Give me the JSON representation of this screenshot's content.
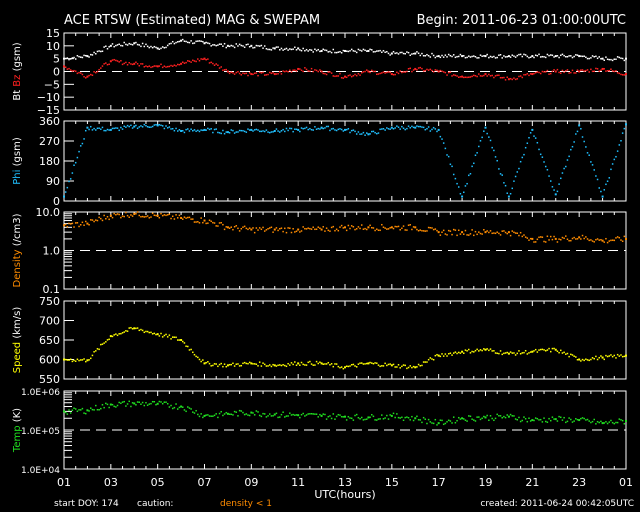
{
  "header": {
    "title": "ACE RTSW (Estimated) MAG & SWEPAM",
    "begin": "Begin: 2011-06-23 01:00:00UTC"
  },
  "footer": {
    "start_doy": "start DOY: 174",
    "caution": "caution:",
    "caution_note": "density < 1",
    "created": "created: 2011-06-24 00:42:05UTC",
    "caution_color": "#ff8c00"
  },
  "chart_data": {
    "type": "scatter",
    "title": "ACE RTSW (Estimated) MAG & SWEPAM",
    "xlabel": "UTC(hours)",
    "x_ticks": [
      "01",
      "03",
      "05",
      "07",
      "09",
      "11",
      "13",
      "15",
      "17",
      "19",
      "21",
      "23",
      "01"
    ],
    "x_range_hours": [
      0,
      24
    ],
    "panels": [
      {
        "id": "mag",
        "ylabel_parts": [
          {
            "text": "Bt",
            "color": "#ffffff"
          },
          {
            "text": " Bz",
            "color": "#ff2020"
          },
          {
            "text": " (gsm)",
            "color": "#ffffff"
          }
        ],
        "scale": "linear",
        "ylim": [
          -15,
          15
        ],
        "ref_line": 0,
        "ticks": [
          {
            "v": 15,
            "label": "15"
          },
          {
            "v": 10,
            "label": "10"
          },
          {
            "v": 5,
            "label": "5"
          },
          {
            "v": 0,
            "label": "0"
          },
          {
            "v": -5,
            "label": "−5"
          },
          {
            "v": -10,
            "label": "−10"
          },
          {
            "v": -15,
            "label": "−15"
          }
        ],
        "series": [
          {
            "name": "Bt",
            "color": "#ffffff",
            "values": [
              5,
              6,
              10,
              11,
              9,
              12,
              11,
              10,
              10,
              9,
              9,
              8,
              8,
              8,
              7,
              7,
              6,
              6,
              6,
              6,
              6,
              6,
              6,
              5,
              5
            ]
          },
          {
            "name": "Bz",
            "color": "#ff2020",
            "values": [
              2,
              -2,
              4,
              3,
              2,
              3,
              5,
              0,
              -1,
              -1,
              1,
              0,
              -2,
              0,
              -1,
              1,
              0,
              -2,
              -1,
              -3,
              -1,
              0,
              0,
              1,
              -1
            ]
          }
        ]
      },
      {
        "id": "phi",
        "ylabel_parts": [
          {
            "text": "Phi",
            "color": "#20c0ff"
          },
          {
            "text": " (gsm)",
            "color": "#ffffff"
          }
        ],
        "scale": "linear",
        "ylim": [
          0,
          360
        ],
        "ticks": [
          {
            "v": 360,
            "label": "360"
          },
          {
            "v": 270,
            "label": "270"
          },
          {
            "v": 180,
            "label": "180"
          },
          {
            "v": 90,
            "label": "90"
          },
          {
            "v": 0,
            "label": "0"
          }
        ],
        "series": [
          {
            "name": "Phi",
            "color": "#20c0ff",
            "values": [
              20,
              330,
              320,
              335,
              340,
              315,
              320,
              310,
              320,
              315,
              320,
              330,
              320,
              300,
              330,
              330,
              320,
              20,
              330,
              20,
              320,
              30,
              340,
              20,
              345
            ]
          }
        ]
      },
      {
        "id": "density",
        "ylabel_parts": [
          {
            "text": "Density",
            "color": "#ff8c00"
          },
          {
            "text": " (/cm3)",
            "color": "#ffffff"
          }
        ],
        "scale": "log",
        "ylim": [
          0.1,
          10
        ],
        "ref_line": 1,
        "ticks": [
          {
            "v": 10,
            "label": "10.0"
          },
          {
            "v": 1,
            "label": "1.0"
          },
          {
            "v": 0.1,
            "label": "0.1"
          }
        ],
        "series": [
          {
            "name": "Density",
            "color": "#ff8c00",
            "values": [
              4.5,
              5,
              8,
              9,
              8,
              7,
              6,
              4,
              3.5,
              3.5,
              3.5,
              3.5,
              4,
              4,
              4,
              4,
              3,
              3,
              3,
              3,
              2,
              2,
              2.2,
              1.8,
              2
            ]
          }
        ]
      },
      {
        "id": "speed",
        "ylabel_parts": [
          {
            "text": "Speed",
            "color": "#ffff00"
          },
          {
            "text": " (km/s)",
            "color": "#ffffff"
          }
        ],
        "scale": "linear",
        "ylim": [
          550,
          750
        ],
        "ticks": [
          {
            "v": 750,
            "label": "750"
          },
          {
            "v": 700,
            "label": "700"
          },
          {
            "v": 650,
            "label": "650"
          },
          {
            "v": 600,
            "label": "600"
          },
          {
            "v": 550,
            "label": "550"
          }
        ],
        "series": [
          {
            "name": "Speed",
            "color": "#ffff00",
            "values": [
              600,
              598,
              660,
              680,
              665,
              650,
              590,
              585,
              590,
              585,
              590,
              590,
              580,
              590,
              585,
              580,
              610,
              620,
              625,
              615,
              620,
              625,
              600,
              605,
              610
            ]
          }
        ]
      },
      {
        "id": "temp",
        "ylabel_parts": [
          {
            "text": "Temp",
            "color": "#20e020"
          },
          {
            "text": " (K)",
            "color": "#ffffff"
          }
        ],
        "scale": "log",
        "ylim": [
          10000,
          1000000
        ],
        "ref_line": 100000,
        "ticks": [
          {
            "v": 1000000,
            "label": "1.0E+06"
          },
          {
            "v": 100000,
            "label": "1.0E+05"
          },
          {
            "v": 10000,
            "label": "1.0E+04"
          }
        ],
        "series": [
          {
            "name": "Temp",
            "color": "#20e020",
            "values": [
              300000,
              320000,
              450000,
              480000,
              470000,
              400000,
              230000,
              260000,
              280000,
              250000,
              240000,
              230000,
              220000,
              210000,
              230000,
              200000,
              150000,
              200000,
              210000,
              220000,
              180000,
              190000,
              180000,
              150000,
              170000
            ]
          }
        ]
      }
    ]
  }
}
